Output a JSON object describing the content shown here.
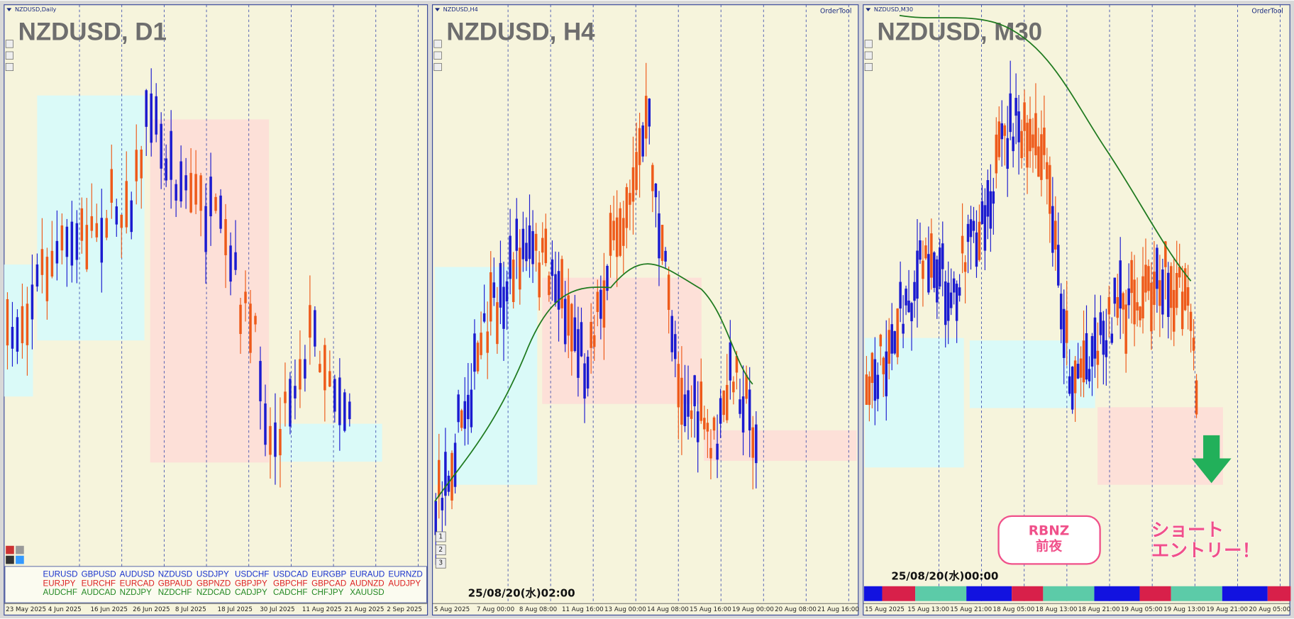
{
  "panels": [
    {
      "window_title": "NZDUSD,Daily",
      "symbol_label": "NZDUSD, D1",
      "dates": [
        "23 May 2025",
        "4 Jun 2025",
        "16 Jun 2025",
        "26 Jun 2025",
        "8 Jul 2025",
        "18 Jul 2025",
        "30 Jul 2025",
        "11 Aug 2025",
        "21 Aug 2025",
        "2 Sep 2025"
      ],
      "pairs": [
        [
          "EURUSD",
          "GBPUSD",
          "AUDUSD",
          "NZDUSD",
          "USDJPY",
          "USDCHF",
          "USDCAD",
          "EURGBP",
          "EURAUD",
          "EURNZD"
        ],
        [
          "EURJPY",
          "EURCHF",
          "EURCAD",
          "GBPAUD",
          "GBPNZD",
          "GBPJPY",
          "GBPCHF",
          "GBPCAD",
          "AUDNZD",
          "AUDJPY"
        ],
        [
          "AUDCHF",
          "AUDCAD",
          "NZDJPY",
          "NZDCHF",
          "NZDCAD",
          "CADJPY",
          "CADCHF",
          "CHFJPY",
          "XAUUSD"
        ]
      ]
    },
    {
      "window_title": "NZDUSD,H4",
      "symbol_label": "NZDUSD, H4",
      "order_tool": "OrderTool",
      "dates": [
        "5 Aug 2025",
        "7 Aug 00:00",
        "8 Aug 08:00",
        "11 Aug 16:00",
        "13 Aug 00:00",
        "14 Aug 08:00",
        "15 Aug 16:00",
        "19 Aug 00:00",
        "20 Aug 08:00",
        "21 Aug 16:00"
      ],
      "buttons": [
        "1",
        "2",
        "3"
      ],
      "timestamp": "25/08/20(水)02:00"
    },
    {
      "window_title": "NZDUSD,M30",
      "symbol_label": "NZDUSD, M30",
      "order_tool": "OrderTool",
      "dates": [
        "15 Aug 2025",
        "15 Aug 13:00",
        "15 Aug 21:00",
        "18 Aug 05:00",
        "18 Aug 13:00",
        "18 Aug 21:00",
        "19 Aug 05:00",
        "19 Aug 13:00",
        "19 Aug 21:00",
        "20 Aug 05:00"
      ],
      "timestamp": "25/08/20(水)00:00",
      "note": [
        "RBNZ",
        "前夜"
      ],
      "callout": [
        "ショート",
        "エントリー！"
      ]
    }
  ]
}
